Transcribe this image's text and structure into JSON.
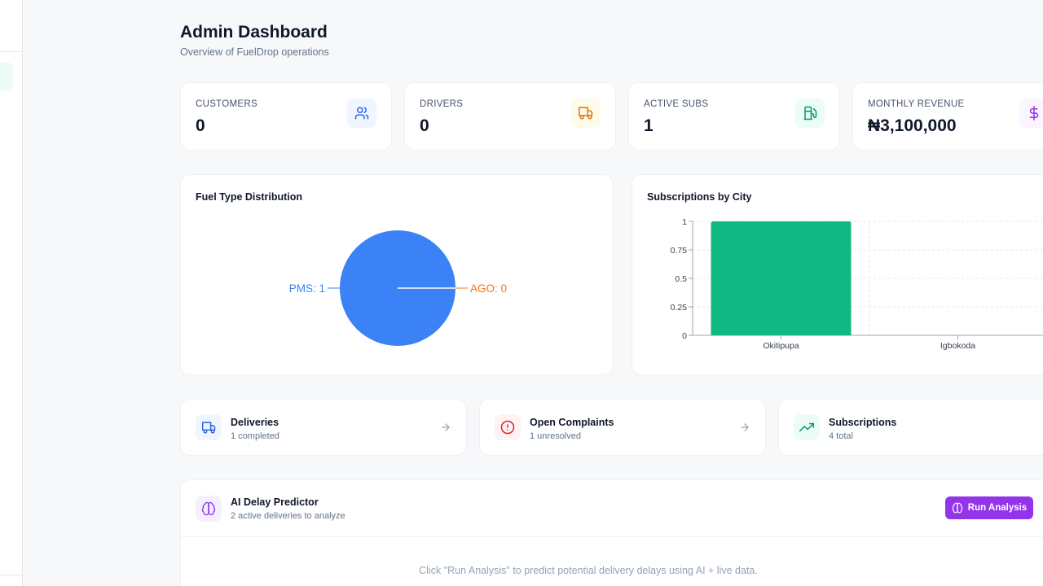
{
  "header": {
    "title": "Admin Dashboard",
    "subtitle": "Overview of FuelDrop operations"
  },
  "stats": [
    {
      "label": "CUSTOMERS",
      "value": "0",
      "icon": "users-icon",
      "color": "#2563eb",
      "bg": "#eff6ff"
    },
    {
      "label": "DRIVERS",
      "value": "0",
      "icon": "truck-icon",
      "color": "#d97706",
      "bg": "#fffbeb"
    },
    {
      "label": "ACTIVE SUBS",
      "value": "1",
      "icon": "fuel-pump-icon",
      "color": "#059669",
      "bg": "#ecfdf5"
    },
    {
      "label": "MONTHLY REVENUE",
      "value": "₦3,100,000",
      "icon": "dollar-icon",
      "color": "#9333ea",
      "bg": "#faf5ff"
    }
  ],
  "charts": {
    "fuel_title": "Fuel Type Distribution",
    "city_title": "Subscriptions by City"
  },
  "chart_data": [
    {
      "type": "pie",
      "title": "Fuel Type Distribution",
      "slices": [
        {
          "label": "PMS",
          "value": 1,
          "color": "#3b82f6"
        },
        {
          "label": "AGO",
          "value": 0,
          "color": "#f97316"
        }
      ],
      "labels": [
        "PMS: 1",
        "AGO: 0"
      ]
    },
    {
      "type": "bar",
      "title": "Subscriptions by City",
      "categories": [
        "Okitipupa",
        "Igbokoda"
      ],
      "values": [
        1,
        0
      ],
      "ylim": [
        0,
        1
      ],
      "yticks": [
        "0",
        "0.25",
        "0.5",
        "0.75",
        "1"
      ],
      "color": "#10b981",
      "grid": true
    }
  ],
  "links": [
    {
      "title": "Deliveries",
      "sub": "1 completed",
      "icon": "truck-icon",
      "color": "#2563eb",
      "bg": "#eff6ff"
    },
    {
      "title": "Open Complaints",
      "sub": "1 unresolved",
      "icon": "alert-circle-icon",
      "color": "#dc2626",
      "bg": "#fef2f2"
    },
    {
      "title": "Subscriptions",
      "sub": "4 total",
      "icon": "trending-up-icon",
      "color": "#059669",
      "bg": "#ecfdf5"
    }
  ],
  "ai": {
    "title": "AI Delay Predictor",
    "subtitle": "2 active deliveries to analyze",
    "button": "Run Analysis",
    "hint": "Click \"Run Analysis\" to predict potential delivery delays using AI + live data."
  }
}
